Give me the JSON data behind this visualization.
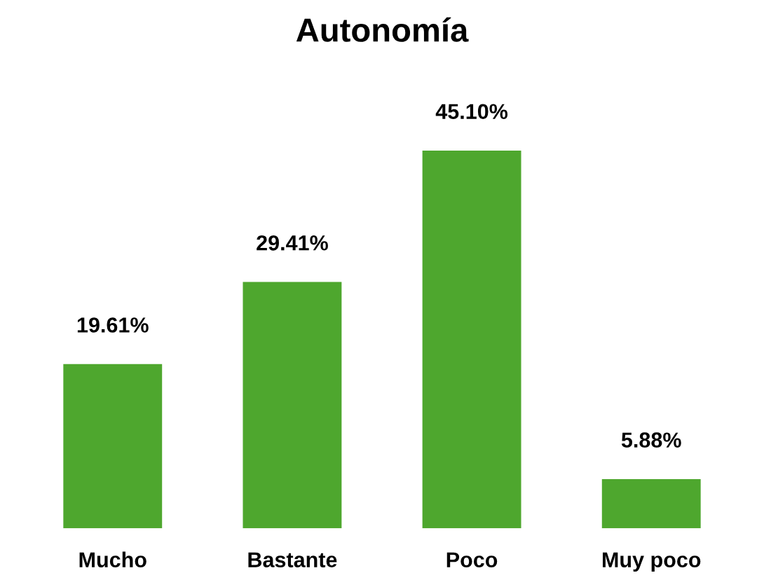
{
  "chart_data": {
    "type": "bar",
    "title": "Autonomía",
    "categories": [
      "Mucho",
      "Bastante",
      "Poco",
      "Muy poco"
    ],
    "values": [
      19.61,
      29.41,
      45.1,
      5.88
    ],
    "value_labels": [
      "19.61%",
      "29.41%",
      "45.10%",
      "5.88%"
    ],
    "color": "#4ea72e",
    "grid": false
  }
}
